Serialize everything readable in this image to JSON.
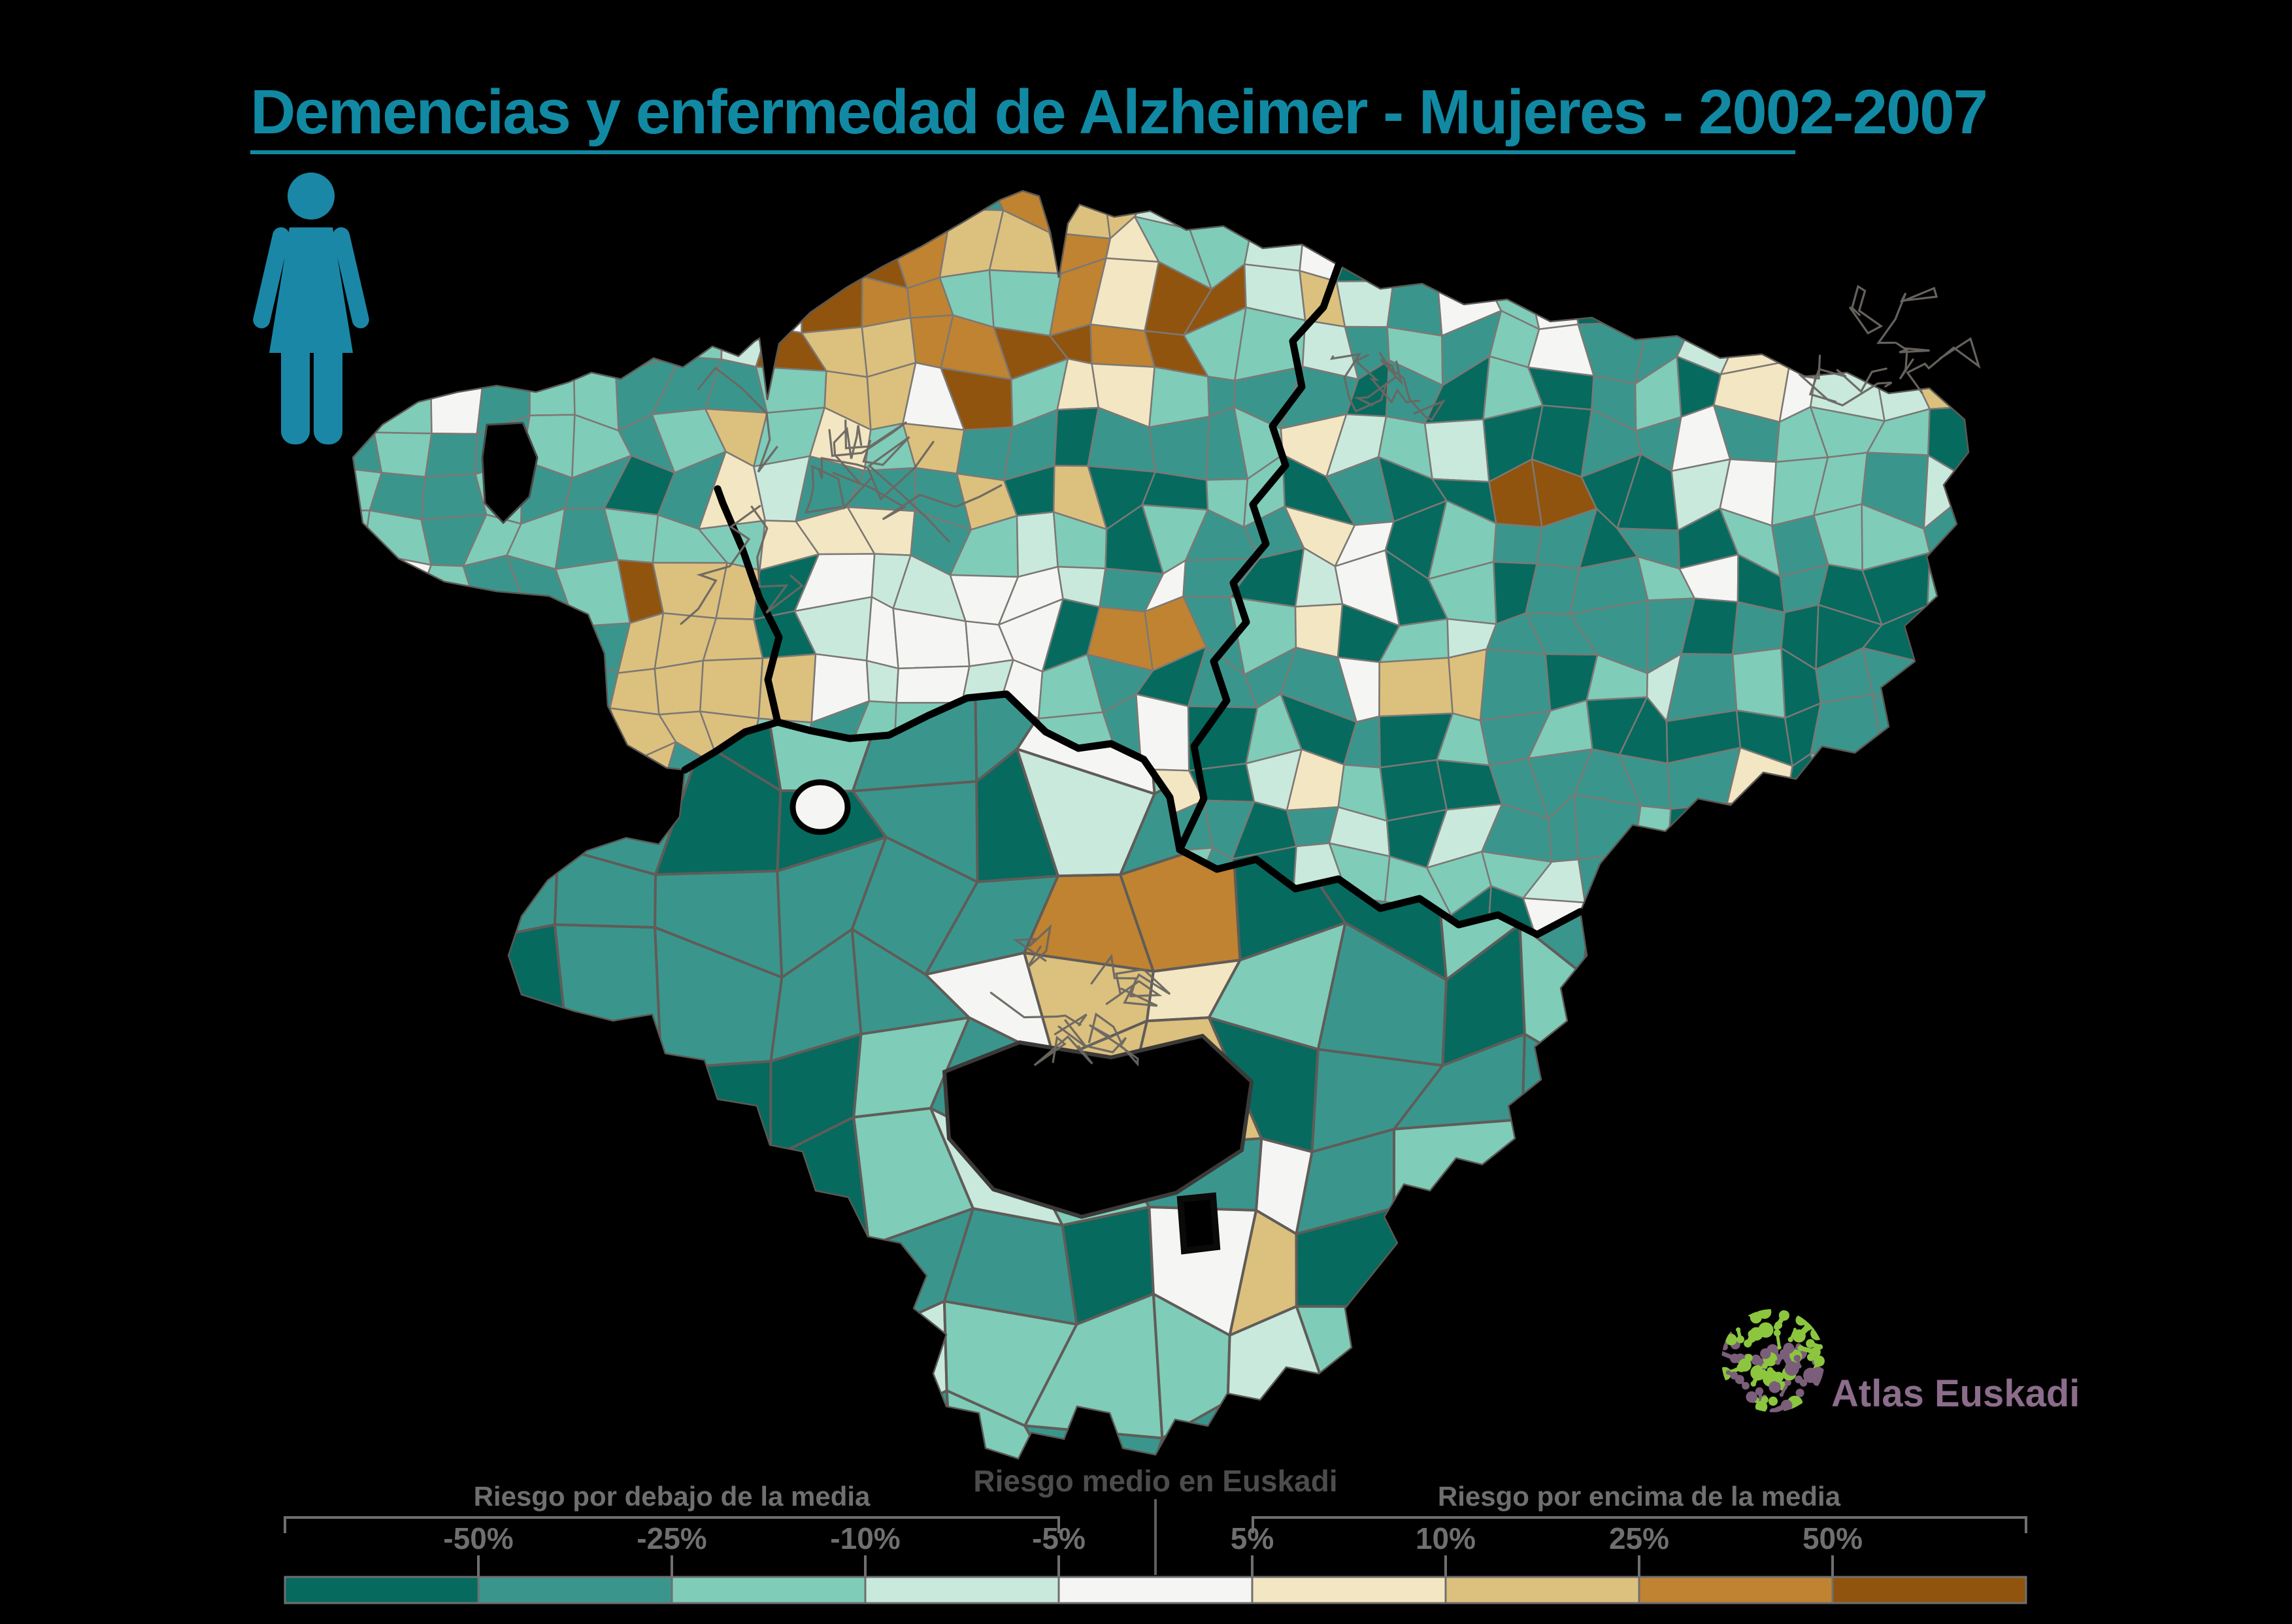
{
  "title": {
    "text": "Demencias y enfermedad de Alzheimer - Mujeres - 2002-2007",
    "color": "#1189a3"
  },
  "female_icon": {
    "name": "woman-pictogram",
    "color": "#1b87a6"
  },
  "background_color": "#000000",
  "legend": {
    "below_label": "Riesgo por debajo de la media",
    "middle_label": "Riesgo medio en Euskadi",
    "above_label": "Riesgo por encima de la media",
    "ticks": [
      "-50%",
      "-25%",
      "-10%",
      "-5%",
      "5%",
      "10%",
      "25%",
      "50%"
    ],
    "text_color": "#6f6f6f",
    "middle_text_color": "#4c4c4c",
    "classes": [
      {
        "label": "menor o igual a -50%",
        "color": "#066a5f"
      },
      {
        "label": "-50% a -25%",
        "color": "#3a968d"
      },
      {
        "label": "-25% a -10%",
        "color": "#7fccb9"
      },
      {
        "label": "-10% a -5%",
        "color": "#c9e9dd"
      },
      {
        "label": "-5% a 5% (riesgo medio)",
        "color": "#f5f6f4"
      },
      {
        "label": "5% a 10%",
        "color": "#f3e6c2"
      },
      {
        "label": "10% a 25%",
        "color": "#dcc07d"
      },
      {
        "label": "25% a 50%",
        "color": "#c08331"
      },
      {
        "label": "mayor o igual a 50%",
        "color": "#90540e"
      }
    ]
  },
  "logo": {
    "text": "Atlas Euskadi",
    "text_color": "#8b6d8b",
    "sphere_green": "#8cc63f",
    "sphere_purple": "#7b5e7a"
  },
  "map": {
    "type": "choropleth",
    "province_border_color": "#000000",
    "municipality_border_color": "#7c7874",
    "road_color": "#6b6762"
  }
}
